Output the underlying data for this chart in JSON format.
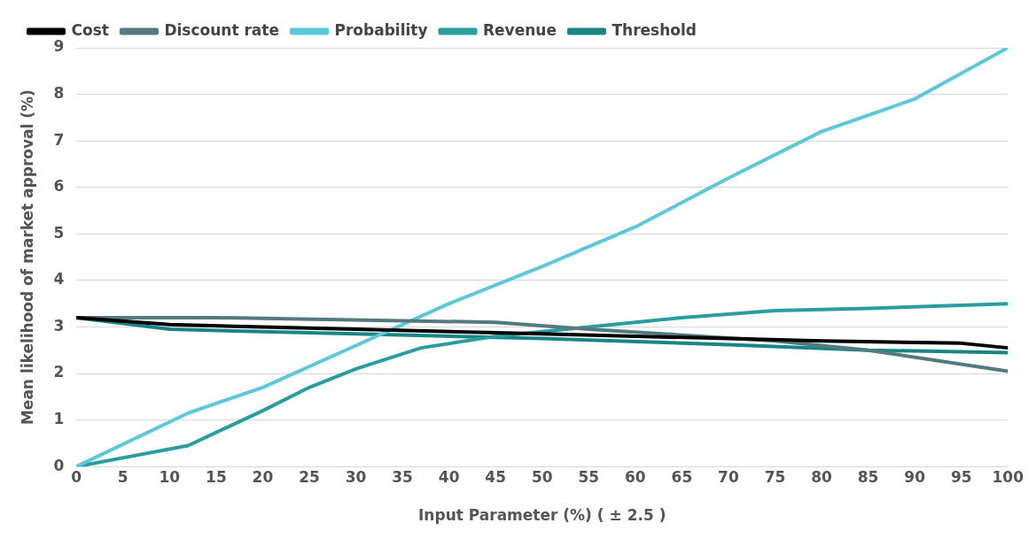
{
  "chart_data": {
    "type": "line",
    "xlabel": "Input Parameter (%) ( ± 2.5 )",
    "ylabel": "Mean likelihood of market approval (%)",
    "xlim": [
      0,
      100
    ],
    "xticks": [
      0,
      5,
      10,
      15,
      20,
      25,
      30,
      35,
      40,
      45,
      50,
      55,
      60,
      65,
      70,
      75,
      80,
      85,
      90,
      95,
      100
    ],
    "ylim": [
      0,
      9
    ],
    "yticks": [
      0,
      1,
      2,
      3,
      4,
      5,
      6,
      7,
      8,
      9
    ],
    "grid": "y",
    "legend": "top left",
    "marker": "none",
    "line_style": "solid",
    "series": [
      {
        "name": "Cost",
        "color": "#000000",
        "x": [
          0,
          10,
          30,
          50,
          70,
          80,
          95,
          100
        ],
        "values": [
          3.2,
          3.05,
          2.95,
          2.85,
          2.75,
          2.7,
          2.65,
          2.55
        ]
      },
      {
        "name": "Discount rate",
        "color": "#557a7d",
        "x": [
          0,
          15,
          45,
          55,
          75,
          85,
          100
        ],
        "values": [
          3.2,
          3.2,
          3.1,
          2.95,
          2.7,
          2.5,
          2.05
        ]
      },
      {
        "name": "Probability",
        "color": "#5bc8dc",
        "x": [
          0,
          12,
          20,
          30,
          40,
          50,
          60,
          70,
          80,
          90,
          100
        ],
        "values": [
          0,
          1.15,
          1.7,
          2.6,
          3.5,
          4.3,
          5.15,
          6.2,
          7.2,
          7.9,
          9.0
        ]
      },
      {
        "name": "Revenue",
        "color": "#2a9d9f",
        "x": [
          0,
          12,
          20,
          25,
          30,
          37,
          45,
          55,
          65,
          75,
          85,
          100
        ],
        "values": [
          0,
          0.45,
          1.2,
          1.7,
          2.1,
          2.55,
          2.8,
          3.0,
          3.2,
          3.35,
          3.4,
          3.5
        ]
      },
      {
        "name": "Threshold",
        "color": "#1a8585",
        "x": [
          0,
          10,
          30,
          50,
          70,
          85,
          100
        ],
        "values": [
          3.2,
          2.95,
          2.85,
          2.75,
          2.62,
          2.5,
          2.45
        ]
      }
    ]
  }
}
